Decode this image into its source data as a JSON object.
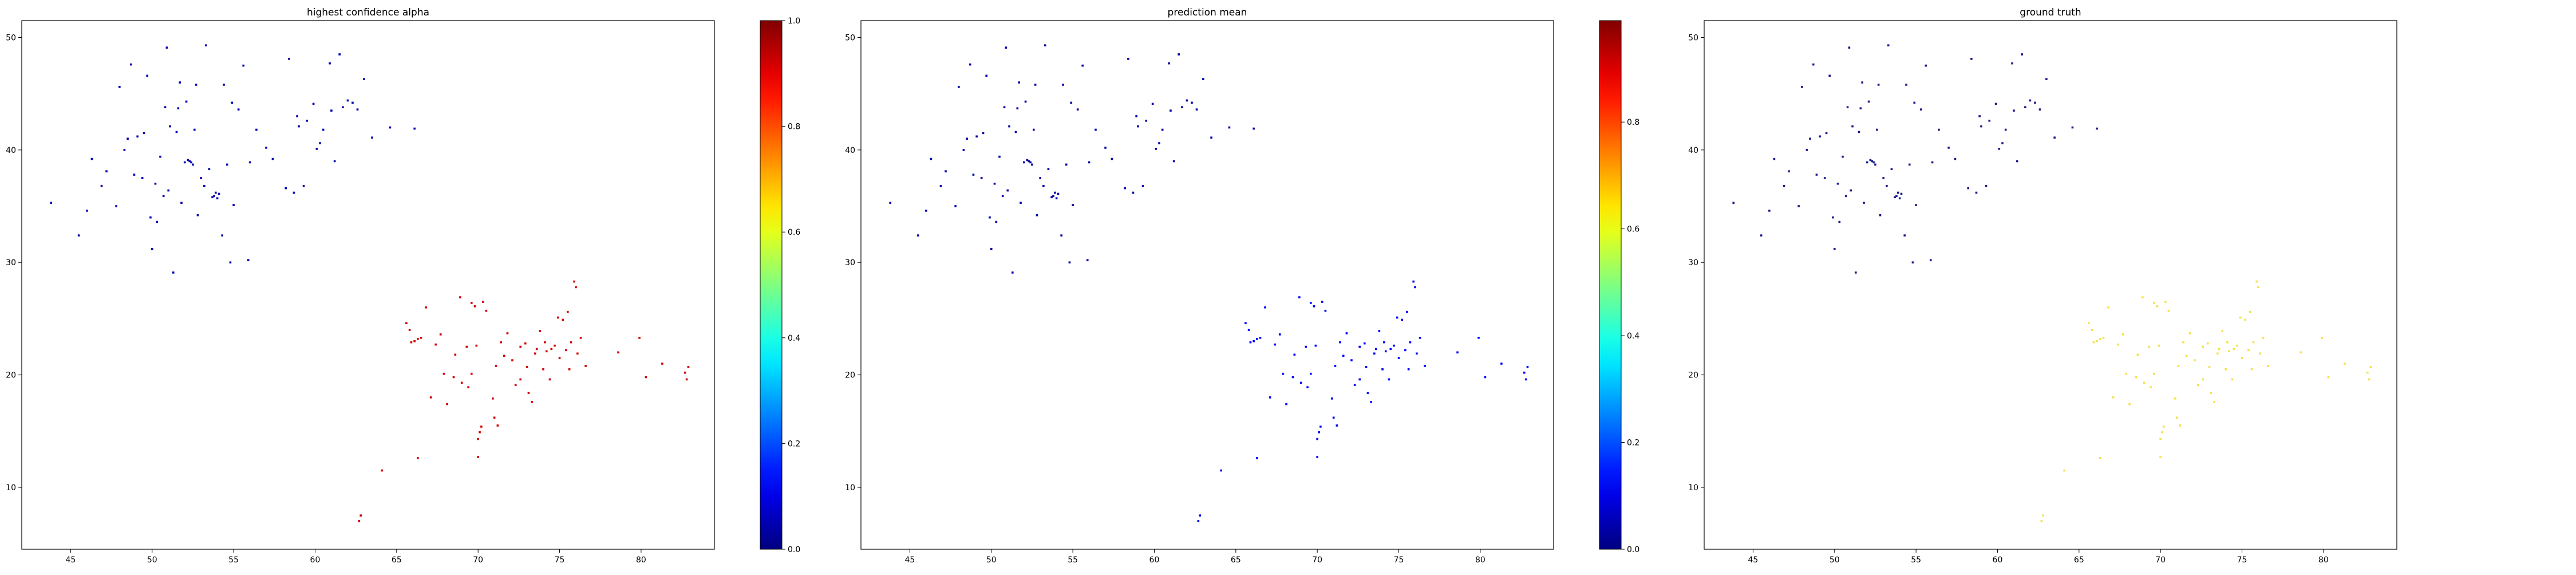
{
  "chart_data": [
    {
      "type": "scatter",
      "title": "highest confidence alpha",
      "xlabel": "",
      "ylabel": "",
      "xlim": [
        42,
        84.5
      ],
      "ylim": [
        4.5,
        51.5
      ],
      "xticks": [
        45,
        50,
        55,
        60,
        65,
        70,
        75,
        80
      ],
      "yticks": [
        10,
        20,
        30,
        40,
        50
      ],
      "grid": false,
      "colorbar": {
        "colormap": "jet",
        "vmin": 0.0,
        "vmax": 1.0,
        "ticks": [
          "0.0",
          "0.2",
          "0.4",
          "0.6",
          "0.8",
          "1.0"
        ]
      },
      "color_rule": "northwest_cluster_low_southeast_cluster_high",
      "values": {
        "northwest_cluster": 0.05,
        "southeast_cluster": 0.92
      }
    },
    {
      "type": "scatter",
      "title": "prediction mean",
      "xlabel": "",
      "ylabel": "",
      "xlim": [
        42,
        84.5
      ],
      "ylim": [
        4.5,
        51.5
      ],
      "xticks": [
        45,
        50,
        55,
        60,
        65,
        70,
        75,
        80
      ],
      "yticks": [
        10,
        20,
        30,
        40,
        50
      ],
      "grid": false,
      "colorbar": {
        "colormap": "jet",
        "vmin": 0.0,
        "vmax": 0.99,
        "ticks": [
          "0.0",
          "0.2",
          "0.4",
          "0.6",
          "0.8"
        ]
      },
      "color_rule": "all_low",
      "values": {
        "northwest_cluster": 0.04,
        "southeast_cluster": 0.12
      }
    },
    {
      "type": "scatter",
      "title": "ground truth",
      "xlabel": "",
      "ylabel": "",
      "xlim": [
        42,
        84.5
      ],
      "ylim": [
        4.5,
        51.5
      ],
      "xticks": [
        45,
        50,
        55,
        60,
        65,
        70,
        75,
        80
      ],
      "yticks": [
        10,
        20,
        30,
        40,
        50
      ],
      "grid": false,
      "color_rule": "northwest_cluster_dark_southeast_cluster_light",
      "values": {
        "northwest_cluster": 0.05,
        "southeast_cluster": 0.65
      }
    }
  ],
  "points": {
    "northwest_cluster": [
      [
        43.8,
        35.3
      ],
      [
        45.5,
        32.4
      ],
      [
        46.0,
        34.6
      ],
      [
        46.3,
        39.2
      ],
      [
        47.2,
        38.1
      ],
      [
        47.8,
        35.0
      ],
      [
        48.0,
        45.6
      ],
      [
        48.3,
        40.0
      ],
      [
        48.7,
        47.6
      ],
      [
        48.9,
        37.8
      ],
      [
        49.1,
        41.2
      ],
      [
        49.4,
        37.5
      ],
      [
        49.5,
        41.5
      ],
      [
        49.7,
        46.6
      ],
      [
        49.9,
        34.0
      ],
      [
        50.0,
        31.2
      ],
      [
        50.3,
        33.6
      ],
      [
        50.5,
        39.4
      ],
      [
        50.8,
        43.8
      ],
      [
        50.9,
        49.1
      ],
      [
        50.7,
        35.9
      ],
      [
        51.0,
        36.4
      ],
      [
        51.1,
        42.1
      ],
      [
        51.3,
        29.1
      ],
      [
        51.5,
        41.6
      ],
      [
        51.6,
        43.7
      ],
      [
        51.7,
        46.0
      ],
      [
        51.8,
        35.3
      ],
      [
        52.0,
        38.9
      ],
      [
        52.1,
        44.3
      ],
      [
        52.2,
        39.1
      ],
      [
        52.3,
        39.0
      ],
      [
        52.4,
        38.9
      ],
      [
        52.5,
        38.7
      ],
      [
        52.6,
        41.8
      ],
      [
        52.7,
        45.8
      ],
      [
        53.0,
        37.5
      ],
      [
        53.2,
        36.8
      ],
      [
        53.3,
        49.3
      ],
      [
        53.5,
        38.3
      ],
      [
        53.7,
        35.8
      ],
      [
        53.8,
        35.9
      ],
      [
        53.9,
        36.2
      ],
      [
        54.0,
        35.7
      ],
      [
        54.1,
        36.1
      ],
      [
        54.3,
        32.4
      ],
      [
        54.4,
        45.8
      ],
      [
        54.6,
        38.7
      ],
      [
        54.8,
        30.0
      ],
      [
        54.9,
        44.2
      ],
      [
        55.3,
        43.6
      ],
      [
        55.6,
        47.5
      ],
      [
        55.9,
        30.2
      ],
      [
        56.0,
        38.9
      ],
      [
        56.4,
        41.8
      ],
      [
        57.4,
        39.2
      ],
      [
        58.2,
        36.6
      ],
      [
        58.4,
        48.1
      ],
      [
        58.7,
        36.2
      ],
      [
        59.0,
        42.1
      ],
      [
        59.3,
        36.8
      ],
      [
        59.5,
        42.6
      ],
      [
        59.9,
        44.1
      ],
      [
        60.1,
        40.1
      ],
      [
        60.3,
        40.6
      ],
      [
        60.5,
        41.8
      ],
      [
        60.9,
        47.7
      ],
      [
        61.0,
        43.5
      ],
      [
        61.2,
        39.0
      ],
      [
        61.5,
        48.5
      ],
      [
        61.7,
        43.8
      ],
      [
        62.0,
        44.4
      ],
      [
        62.3,
        44.2
      ],
      [
        62.6,
        43.6
      ],
      [
        63.0,
        46.3
      ],
      [
        63.5,
        41.1
      ],
      [
        64.6,
        42.0
      ],
      [
        66.1,
        41.9
      ],
      [
        46.9,
        36.8
      ],
      [
        48.5,
        41.0
      ],
      [
        50.2,
        37.0
      ],
      [
        52.8,
        34.2
      ],
      [
        55.0,
        35.1
      ],
      [
        57.0,
        40.2
      ],
      [
        58.9,
        43.0
      ]
    ],
    "southeast_cluster": [
      [
        62.7,
        7.0
      ],
      [
        62.8,
        7.5
      ],
      [
        64.1,
        11.5
      ],
      [
        65.6,
        24.6
      ],
      [
        65.8,
        24.0
      ],
      [
        65.9,
        22.9
      ],
      [
        66.1,
        23.0
      ],
      [
        66.3,
        23.2
      ],
      [
        66.5,
        23.3
      ],
      [
        66.3,
        12.6
      ],
      [
        66.8,
        26.0
      ],
      [
        67.1,
        18.0
      ],
      [
        67.4,
        22.7
      ],
      [
        67.7,
        23.6
      ],
      [
        67.9,
        20.1
      ],
      [
        68.1,
        17.4
      ],
      [
        68.5,
        19.8
      ],
      [
        68.9,
        26.9
      ],
      [
        69.0,
        19.3
      ],
      [
        69.3,
        22.5
      ],
      [
        69.4,
        18.9
      ],
      [
        69.6,
        26.4
      ],
      [
        69.9,
        22.6
      ],
      [
        69.8,
        26.1
      ],
      [
        70.0,
        14.3
      ],
      [
        70.1,
        14.9
      ],
      [
        70.2,
        15.4
      ],
      [
        70.0,
        12.7
      ],
      [
        70.3,
        26.5
      ],
      [
        70.5,
        25.7
      ],
      [
        70.9,
        17.9
      ],
      [
        71.0,
        16.2
      ],
      [
        71.2,
        15.5
      ],
      [
        71.4,
        22.9
      ],
      [
        71.6,
        21.7
      ],
      [
        71.8,
        23.7
      ],
      [
        72.1,
        21.3
      ],
      [
        72.3,
        19.1
      ],
      [
        72.6,
        22.5
      ],
      [
        72.9,
        22.8
      ],
      [
        73.1,
        18.4
      ],
      [
        73.3,
        17.6
      ],
      [
        73.5,
        21.9
      ],
      [
        73.6,
        22.3
      ],
      [
        73.8,
        23.9
      ],
      [
        74.0,
        20.5
      ],
      [
        74.2,
        22.1
      ],
      [
        74.4,
        19.6
      ],
      [
        74.5,
        22.3
      ],
      [
        74.7,
        22.6
      ],
      [
        74.9,
        25.1
      ],
      [
        75.0,
        21.5
      ],
      [
        75.2,
        24.9
      ],
      [
        75.4,
        22.2
      ],
      [
        75.5,
        25.6
      ],
      [
        75.7,
        22.9
      ],
      [
        75.9,
        28.3
      ],
      [
        76.0,
        27.8
      ],
      [
        76.1,
        21.9
      ],
      [
        76.3,
        23.3
      ],
      [
        76.6,
        20.8
      ],
      [
        78.6,
        22.0
      ],
      [
        79.9,
        23.3
      ],
      [
        80.3,
        19.8
      ],
      [
        81.3,
        21.0
      ],
      [
        82.7,
        20.2
      ],
      [
        82.8,
        19.6
      ],
      [
        82.9,
        20.7
      ],
      [
        72.6,
        19.6
      ],
      [
        74.1,
        22.9
      ],
      [
        73.0,
        20.7
      ],
      [
        69.6,
        20.1
      ],
      [
        71.1,
        20.8
      ],
      [
        75.6,
        20.5
      ],
      [
        68.6,
        21.8
      ]
    ]
  }
}
